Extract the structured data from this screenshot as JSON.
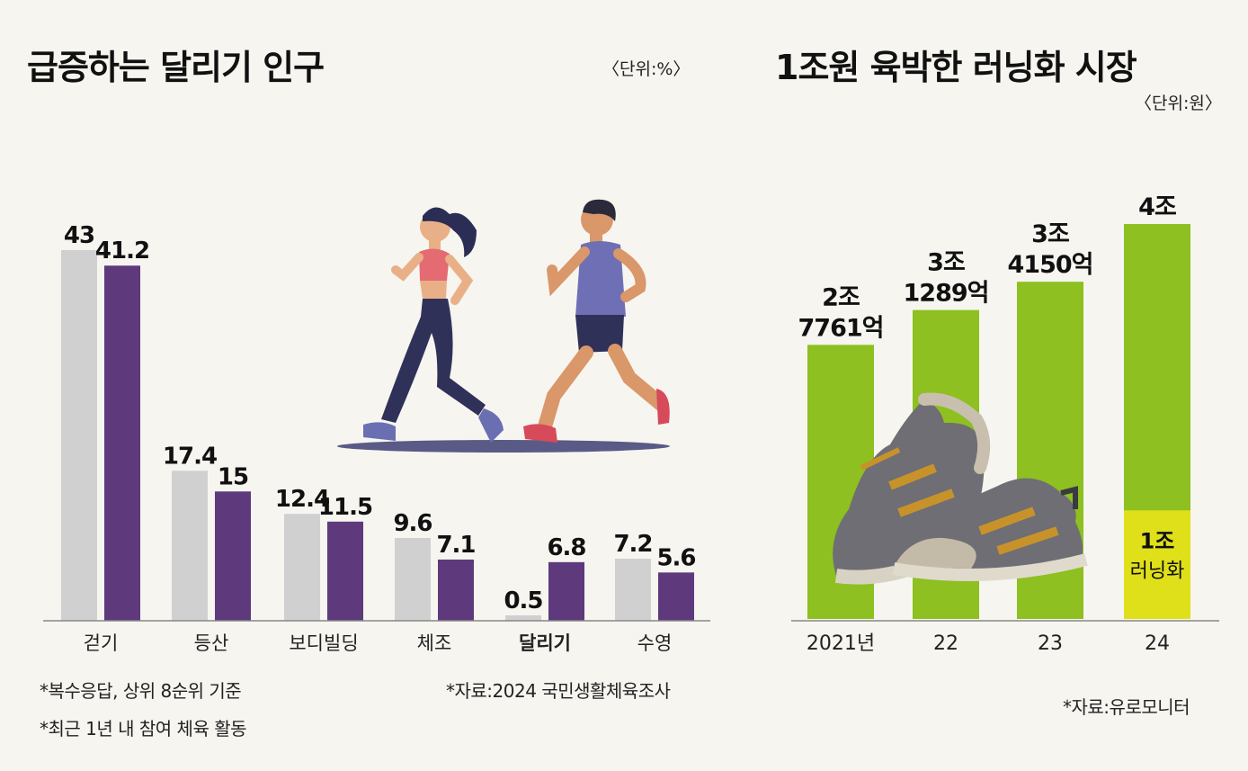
{
  "left": {
    "title": "급증하는 달리기 인구",
    "unit": "〈단위:%〉",
    "notes": [
      "*복수응답, 상위 8순위 기준",
      "*최근 1년 내 참여 체육 활동"
    ],
    "source": "*자료:2024 국민생활체육조사"
  },
  "right": {
    "title": "1조원 육박한 러닝화 시장",
    "unit": "〈단위:원〉",
    "source": "*자료:유로모니터",
    "highlight_label": [
      "1조",
      "러닝화"
    ]
  },
  "colors": {
    "gray": "#d0d0d0",
    "purple": "#5e3a7d",
    "green": "#8dc020",
    "yellow": "#dfe01a",
    "axis": "#888888"
  },
  "illustration": {
    "runners_icon": "two-runners-icon",
    "shoes_icon": "running-shoes-icon"
  },
  "chart_data": [
    {
      "type": "bar",
      "categories": [
        "걷기",
        "등산",
        "보디빌딩",
        "체조",
        "달리기",
        "수영"
      ],
      "highlight_category": "달리기",
      "series": [
        {
          "values": [
            43,
            17.4,
            12.4,
            9.6,
            0.5,
            7.2
          ],
          "labels": [
            "43",
            "17.4",
            "12.4",
            "9.6",
            "0.5",
            "7.2"
          ]
        },
        {
          "values": [
            41.2,
            15,
            11.5,
            7.1,
            6.8,
            5.6
          ],
          "labels": [
            "41.2",
            "15",
            "11.5",
            "7.1",
            "6.8",
            "5.6"
          ]
        }
      ],
      "ylim": [
        0,
        43
      ],
      "grid": false
    },
    {
      "type": "bar",
      "categories": [
        "2021년",
        "22",
        "23",
        "24"
      ],
      "values": [
        27761,
        31289,
        34150,
        40000
      ],
      "value_labels": [
        [
          "2조",
          "7761억"
        ],
        [
          "3조",
          "1289억"
        ],
        [
          "3조",
          "4150억"
        ],
        [
          "4조"
        ]
      ],
      "highlight": {
        "category": "24",
        "value": 10000
      },
      "ylim": [
        0,
        40000
      ],
      "grid": false
    }
  ]
}
